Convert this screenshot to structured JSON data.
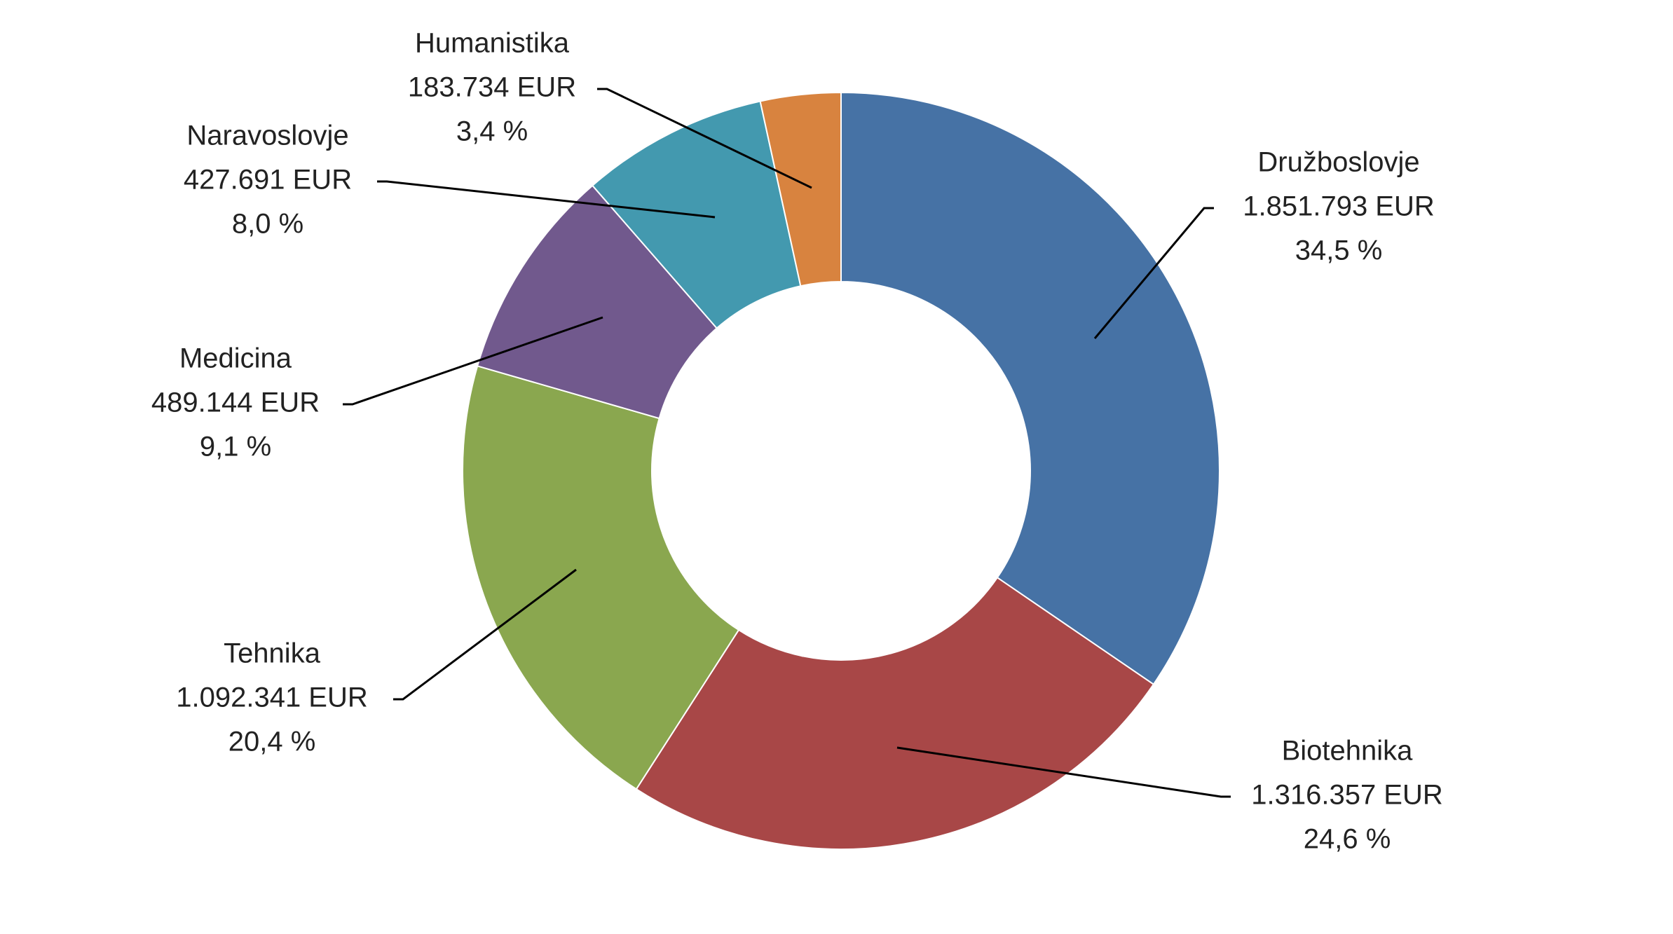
{
  "chart_data": {
    "type": "pie",
    "variant": "donut",
    "title": "",
    "legend": "none",
    "series": [
      {
        "slices": [
          {
            "label": "Družboslovje",
            "value": 1851793,
            "value_text": "1.851.793 EUR",
            "percent": 34.5,
            "percent_text": "34,5 %",
            "color": "#4672A5"
          },
          {
            "label": "Biotehnika",
            "value": 1316357,
            "value_text": "1.316.357 EUR",
            "percent": 24.6,
            "percent_text": "24,6 %",
            "color": "#A84747"
          },
          {
            "label": "Tehnika",
            "value": 1092341,
            "value_text": "1.092.341 EUR",
            "percent": 20.4,
            "percent_text": "20,4 %",
            "color": "#8AA74F"
          },
          {
            "label": "Medicina",
            "value": 489144,
            "value_text": "489.144 EUR",
            "percent": 9.1,
            "percent_text": "9,1 %",
            "color": "#71598D"
          },
          {
            "label": "Naravoslovje",
            "value": 427691,
            "value_text": "427.691 EUR",
            "percent": 8.0,
            "percent_text": "8,0 %",
            "color": "#4399AF"
          },
          {
            "label": "Humanistika",
            "value": 183734,
            "value_text": "183.734 EUR",
            "percent": 3.4,
            "percent_text": "3,4 %",
            "color": "#D8833F"
          }
        ]
      }
    ]
  }
}
